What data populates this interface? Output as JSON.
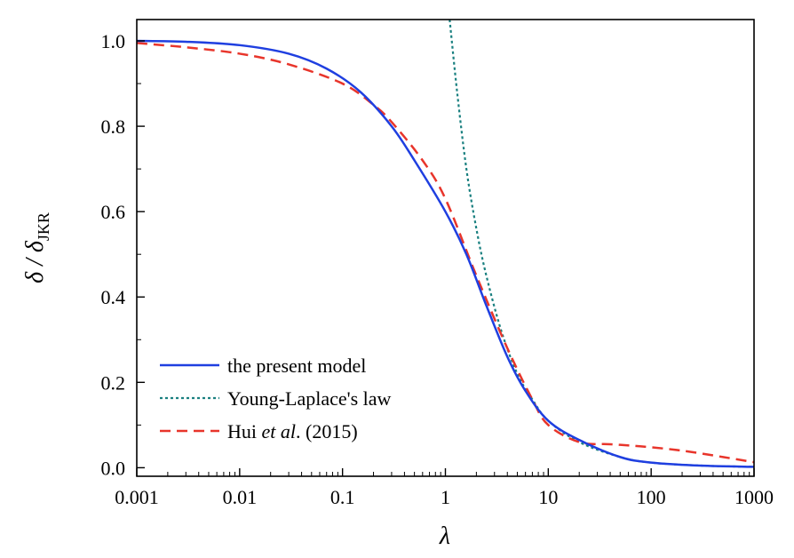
{
  "chart_data": {
    "type": "line",
    "title": "",
    "xlabel": "λ",
    "ylabel_main": "δ / δ",
    "ylabel_sub": "JKR",
    "xscale": "log",
    "xlim": [
      0.001,
      1000
    ],
    "ylim": [
      -0.02,
      1.05
    ],
    "grid": false,
    "legend_position": "bottom-left",
    "x_ticks": [
      {
        "value": 0.001,
        "label": "0.001"
      },
      {
        "value": 0.01,
        "label": "0.01"
      },
      {
        "value": 0.1,
        "label": "0.1"
      },
      {
        "value": 1,
        "label": "1"
      },
      {
        "value": 10,
        "label": "10"
      },
      {
        "value": 100,
        "label": "100"
      },
      {
        "value": 1000,
        "label": "1000"
      }
    ],
    "y_ticks": [
      {
        "value": 0.0,
        "label": "0.0"
      },
      {
        "value": 0.2,
        "label": "0.2"
      },
      {
        "value": 0.4,
        "label": "0.4"
      },
      {
        "value": 0.6,
        "label": "0.6"
      },
      {
        "value": 0.8,
        "label": "0.8"
      },
      {
        "value": 1.0,
        "label": "1.0"
      }
    ],
    "series": [
      {
        "name": "the present model",
        "color": "#1f3fe0",
        "style": "solid",
        "x": [
          0.001,
          0.003,
          0.01,
          0.03,
          0.07,
          0.15,
          0.3,
          0.5,
          1.0,
          1.6,
          2.5,
          4,
          6,
          10,
          20,
          50,
          100,
          300,
          1000
        ],
        "y": [
          1.0,
          0.998,
          0.99,
          0.97,
          0.935,
          0.88,
          0.8,
          0.72,
          0.6,
          0.5,
          0.38,
          0.26,
          0.18,
          0.11,
          0.065,
          0.025,
          0.012,
          0.005,
          0.002
        ]
      },
      {
        "name": "Young-Laplace's law",
        "color": "#1a8080",
        "style": "dotted",
        "x": [
          1.1,
          1.3,
          1.6,
          2.0,
          2.5,
          3.5,
          5,
          7,
          10,
          20,
          50,
          100,
          300,
          1000
        ],
        "y": [
          1.05,
          0.88,
          0.7,
          0.56,
          0.45,
          0.32,
          0.22,
          0.16,
          0.11,
          0.06,
          0.025,
          0.012,
          0.005,
          0.002
        ]
      },
      {
        "name": "Hui et al. (2015)",
        "name_parts": [
          "Hui ",
          "et al",
          ". (2015)"
        ],
        "color": "#e8352b",
        "style": "dashed",
        "x": [
          0.001,
          0.003,
          0.01,
          0.03,
          0.1,
          0.2,
          0.3,
          0.6,
          1.0,
          2.0,
          4,
          7,
          10,
          20,
          40,
          80,
          200,
          500,
          1000
        ],
        "y": [
          0.995,
          0.985,
          0.97,
          0.945,
          0.9,
          0.85,
          0.81,
          0.72,
          0.63,
          0.45,
          0.28,
          0.16,
          0.1,
          0.06,
          0.055,
          0.05,
          0.04,
          0.025,
          0.013
        ]
      }
    ]
  }
}
